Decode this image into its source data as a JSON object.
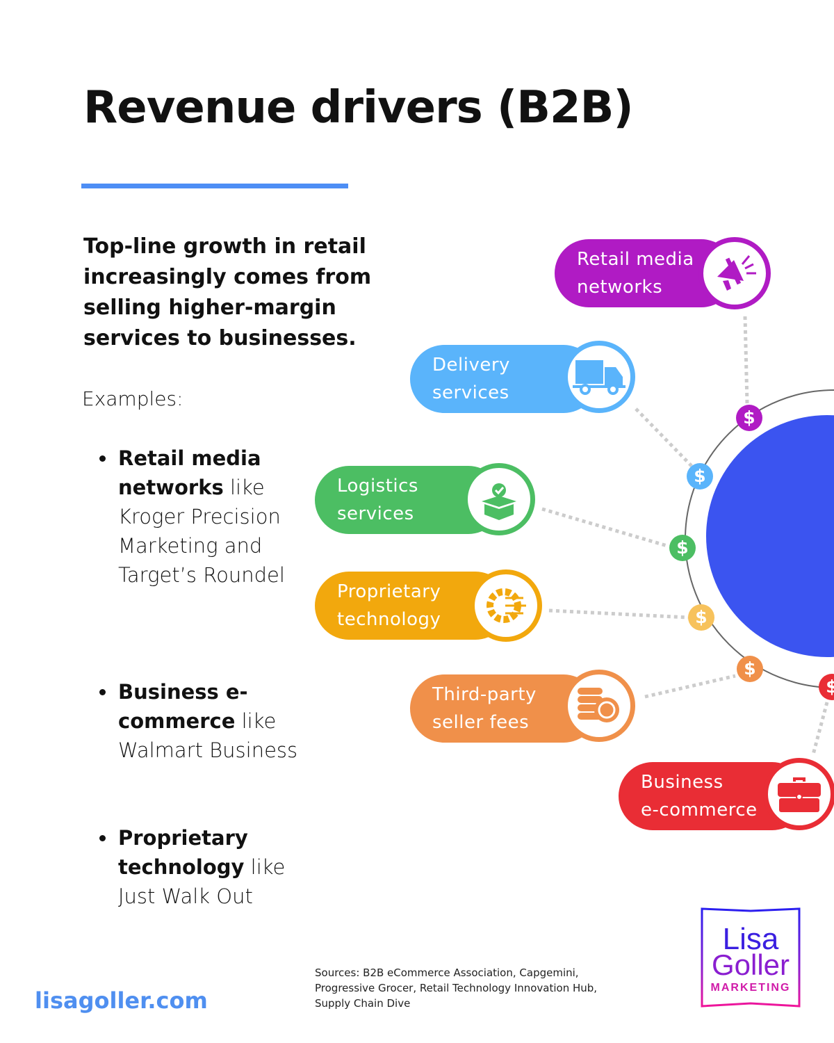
{
  "title": "Revenue drivers (B2B)",
  "lead": "Top-line growth in retail increasingly comes from selling higher-margin services to businesses.",
  "examples_label": "Examples:",
  "examples": [
    {
      "bold": "Retail media networks",
      "rest": " like Kroger Precision Marketing and Target’s Roundel"
    },
    {
      "bold": "Business e-commerce",
      "rest": " like Walmart Business"
    },
    {
      "bold": "Proprietary technology",
      "rest": " like Just Walk Out"
    }
  ],
  "diagram": {
    "coin_symbol": "$",
    "nodes": [
      {
        "line1": "Retail media",
        "line2": "networks",
        "icon": "megaphone-icon",
        "color": "#b01bc4"
      },
      {
        "line1": "Delivery",
        "line2": "services",
        "icon": "truck-icon",
        "color": "#5ab4fb"
      },
      {
        "line1": "Logistics",
        "line2": "services",
        "icon": "package-check-icon",
        "color": "#4cbe63"
      },
      {
        "line1": "Proprietary",
        "line2": "technology",
        "icon": "gear-circuit-icon",
        "color": "#f2a80d"
      },
      {
        "line1": "Third-party",
        "line2": "seller fees",
        "icon": "coins-icon",
        "color": "#f0904a"
      },
      {
        "line1": "Business",
        "line2": "e-commerce",
        "icon": "briefcase-icon",
        "color": "#e92d35"
      }
    ],
    "hub_color": "#3b54f0"
  },
  "footer": {
    "url": "lisagoller.com",
    "sources": "Sources: B2B eCommerce Association, Capgemini, Progressive Grocer, Retail Technology Innovation Hub, Supply Chain Dive",
    "logo": {
      "line1": "Lisa",
      "line2": "Goller",
      "line3": "MARKETING"
    }
  }
}
